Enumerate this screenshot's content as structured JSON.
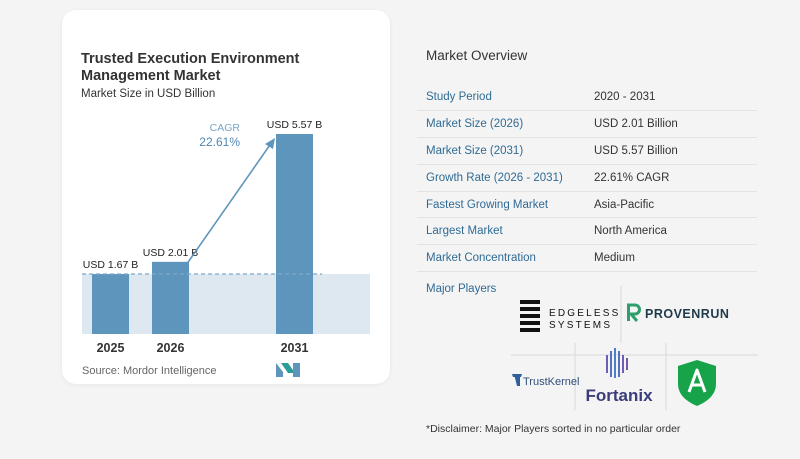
{
  "chart": {
    "title": "Trusted Execution Environment Management Market",
    "subtitle": "Market Size in USD Billion",
    "source": "Source:  Mordor Intelligence",
    "cagr_label": "CAGR",
    "cagr_value": "22.61%",
    "colors": {
      "bar": "#5e95bd",
      "bar_top": "#7aaed3",
      "band": "#dde8f1",
      "arrow": "#5e95bd",
      "dashed": "#7fa9c8"
    }
  },
  "chart_data": {
    "type": "bar",
    "categories": [
      "2025",
      "2026",
      "2031"
    ],
    "values": [
      1.67,
      2.01,
      5.57
    ],
    "value_labels": [
      "USD 1.67 B",
      "USD 2.01 B",
      "USD 5.57 B"
    ],
    "title": "Trusted Execution Environment Management Market",
    "subtitle": "Market Size in USD Billion",
    "ylabel": "",
    "xlabel": "",
    "ylim": [
      0,
      5.57
    ],
    "annotation": {
      "label": "CAGR",
      "value": "22.61%"
    }
  },
  "overview": {
    "title": "Market Overview",
    "rows": [
      {
        "key": "Study Period",
        "value": "2020 - 2031"
      },
      {
        "key": "Market Size (2026)",
        "value": "USD 2.01 Billion"
      },
      {
        "key": "Market Size (2031)",
        "value": "USD 5.57 Billion"
      },
      {
        "key": "Growth Rate (2026 - 2031)",
        "value": "22.61% CAGR"
      },
      {
        "key": "Fastest Growing Market",
        "value": "Asia-Pacific"
      },
      {
        "key": "Largest Market",
        "value": "North America"
      },
      {
        "key": "Market Concentration",
        "value": "Medium"
      }
    ]
  },
  "players": {
    "label": "Major Players",
    "logos": [
      {
        "name": "edgeless-systems",
        "line1": "EDGELESS",
        "line2": "SYSTEMS",
        "icon": "stacked-bars-icon"
      },
      {
        "name": "provenrun",
        "text": "PROVENRUN",
        "icon": "r-mark-icon",
        "color": "#2e9e6d"
      },
      {
        "name": "trustkernel",
        "text": "TrustKernel",
        "icon": "tk-mark-icon",
        "color": "#2f5f9c"
      },
      {
        "name": "fortanix",
        "text": "Fortanix",
        "icon": "fortanix-mark-icon",
        "color": "#3a3d7a"
      },
      {
        "name": "shield-logo",
        "icon": "shield-a-icon",
        "color": "#17a34a"
      }
    ],
    "disclaimer": "*Disclaimer: Major Players sorted in no particular order"
  }
}
